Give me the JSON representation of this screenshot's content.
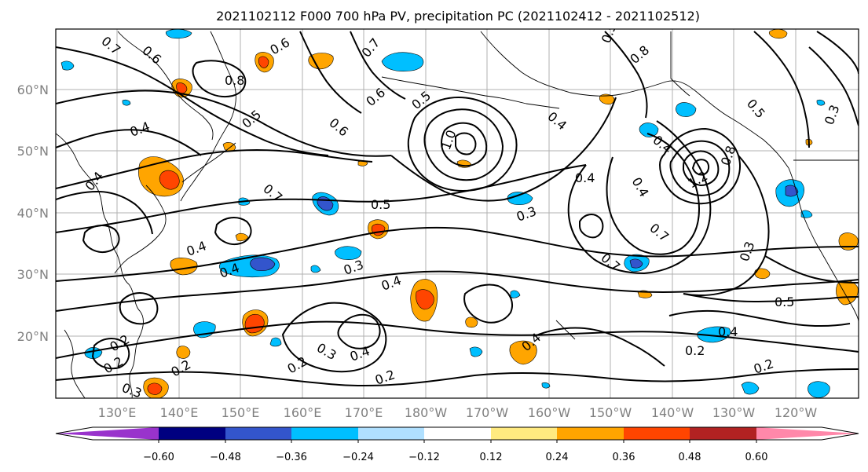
{
  "title": "2021102112 F000 700 hPa PV, precipitation PC (2021102412 - 2021102512)",
  "latitude_ticks": [
    "60°N",
    "50°N",
    "40°N",
    "30°N",
    "20°N"
  ],
  "longitude_ticks": [
    "130°E",
    "140°E",
    "150°E",
    "160°E",
    "170°E",
    "180°W",
    "170°W",
    "160°W",
    "150°W",
    "140°W",
    "130°W",
    "120°W"
  ],
  "colorbar": {
    "tick_labels": [
      "−0.60",
      "−0.48",
      "−0.36",
      "−0.24",
      "−0.12",
      "0.12",
      "0.24",
      "0.36",
      "0.48",
      "0.60"
    ],
    "colors": [
      "#9933cc",
      "#000080",
      "#3355cc",
      "#00bfff",
      "#b0e0ff",
      "#ffffff",
      "#ffea80",
      "#ffa500",
      "#ff4500",
      "#b22222",
      "#ff88aa"
    ]
  },
  "contour_labels": [
    {
      "text": "0.7"
    },
    {
      "text": "0.6"
    },
    {
      "text": "0.8"
    },
    {
      "text": "0.6"
    },
    {
      "text": "0.5"
    },
    {
      "text": "0.4"
    },
    {
      "text": "0.4"
    },
    {
      "text": "0.6"
    },
    {
      "text": "0.7"
    },
    {
      "text": "0.5"
    },
    {
      "text": "0.4"
    },
    {
      "text": "0.4"
    },
    {
      "text": "0.3"
    },
    {
      "text": "0.4"
    },
    {
      "text": "0.3"
    },
    {
      "text": "0.3"
    },
    {
      "text": "0.4"
    },
    {
      "text": "0.2"
    },
    {
      "text": "0.2"
    },
    {
      "text": "0.2"
    },
    {
      "text": "0.2"
    },
    {
      "text": "0.3"
    },
    {
      "text": "0.2"
    },
    {
      "text": "0.7"
    },
    {
      "text": "0.6"
    },
    {
      "text": "0.5"
    },
    {
      "text": "1.0"
    },
    {
      "text": "0.4"
    },
    {
      "text": "0.8"
    },
    {
      "text": "0.5"
    },
    {
      "text": "0.4"
    },
    {
      "text": "0.4"
    },
    {
      "text": "0.7"
    },
    {
      "text": "1.2"
    },
    {
      "text": "0.8"
    },
    {
      "text": "0.5"
    },
    {
      "text": "0.3"
    },
    {
      "text": "0.3"
    },
    {
      "text": "0.5"
    },
    {
      "text": "0.4"
    },
    {
      "text": "0.2"
    },
    {
      "text": "0.2"
    },
    {
      "text": "0.7"
    },
    {
      "text": "0.4"
    },
    {
      "text": "0.4"
    }
  ]
}
